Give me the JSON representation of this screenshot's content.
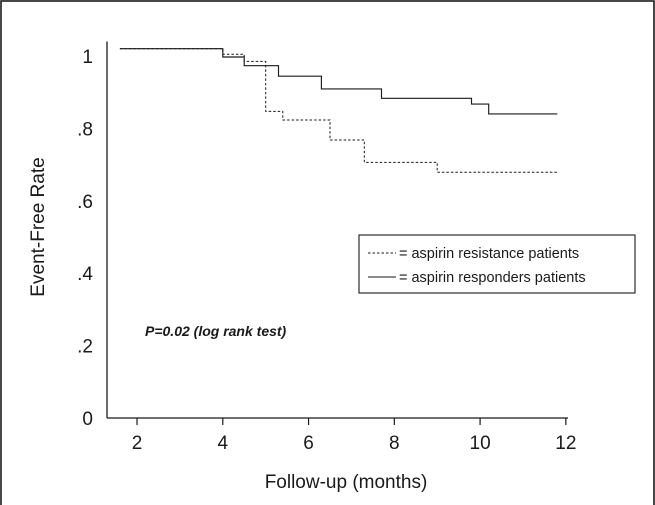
{
  "chart_data": {
    "type": "line",
    "subtype": "kaplan-meier step plot",
    "xlabel": "Follow-up (months)",
    "ylabel": "Event-Free Rate",
    "xlim": [
      1.3,
      12.4
    ],
    "ylim": [
      0,
      1.08
    ],
    "x_ticks": [
      {
        "value": 2,
        "label": "2"
      },
      {
        "value": 4,
        "label": "4"
      },
      {
        "value": 6,
        "label": "6"
      },
      {
        "value": 8,
        "label": "8"
      },
      {
        "value": 10,
        "label": "10"
      },
      {
        "value": 12,
        "label": "12"
      }
    ],
    "y_ticks": [
      {
        "value": 1.0,
        "label": "1"
      },
      {
        "value": 0.8,
        "label": ".8"
      },
      {
        "value": 0.6,
        "label": ".6"
      },
      {
        "value": 0.4,
        "label": ".4"
      },
      {
        "value": 0.2,
        "label": ".2"
      },
      {
        "value": 0.0,
        "label": "0"
      }
    ],
    "grid": false,
    "legend_position": "right",
    "series": [
      {
        "name": "= aspirin resistance patients",
        "line_style": "dashed",
        "color": "#1a1a1a",
        "points": [
          [
            1.6,
            1.02
          ],
          [
            4.0,
            1.02
          ],
          [
            4.0,
            1.005
          ],
          [
            4.5,
            1.005
          ],
          [
            4.5,
            0.985
          ],
          [
            5.0,
            0.985
          ],
          [
            5.0,
            0.847
          ],
          [
            5.4,
            0.847
          ],
          [
            5.4,
            0.823
          ],
          [
            6.5,
            0.823
          ],
          [
            6.5,
            0.768
          ],
          [
            7.3,
            0.768
          ],
          [
            7.3,
            0.706
          ],
          [
            9.0,
            0.706
          ],
          [
            9.0,
            0.679
          ],
          [
            11.8,
            0.679
          ]
        ]
      },
      {
        "name": "= aspirin responders patients",
        "line_style": "solid",
        "color": "#1a1a1a",
        "points": [
          [
            1.6,
            1.02
          ],
          [
            4.0,
            1.02
          ],
          [
            4.0,
            0.997
          ],
          [
            4.5,
            0.997
          ],
          [
            4.5,
            0.973
          ],
          [
            5.3,
            0.973
          ],
          [
            5.3,
            0.944
          ],
          [
            6.3,
            0.944
          ],
          [
            6.3,
            0.909
          ],
          [
            7.7,
            0.909
          ],
          [
            7.7,
            0.883
          ],
          [
            9.8,
            0.883
          ],
          [
            9.8,
            0.867
          ],
          [
            10.2,
            0.867
          ],
          [
            10.2,
            0.84
          ],
          [
            11.8,
            0.84
          ]
        ]
      }
    ],
    "annotations": [
      {
        "text": "P=0.02 (log rank test)",
        "style": "bold-italic"
      }
    ]
  }
}
